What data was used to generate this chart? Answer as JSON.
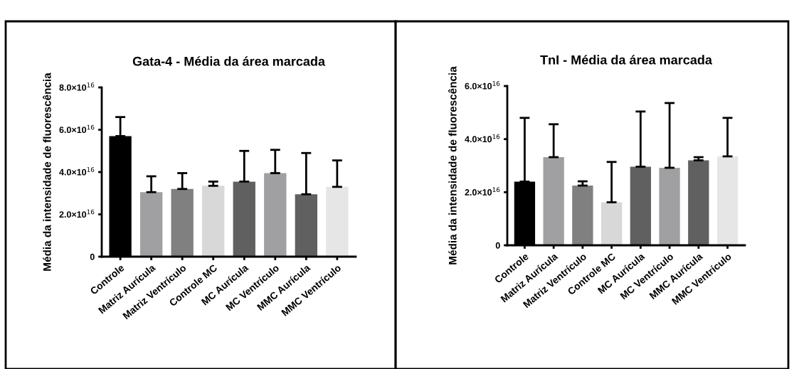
{
  "chart_data": [
    {
      "type": "bar",
      "title": "Gata-4 - Média da área marcada",
      "ylabel": "Média da intensidade de fluorescência",
      "categories": [
        "Controle",
        "Matriz Aurícula",
        "Matriz Ventrículo",
        "Controle MC",
        "MC Aurícula",
        "MC Ventrículo",
        "MMC Aurícula",
        "MMC Ventrículo"
      ],
      "values": [
        5.7e+16,
        3.05e+16,
        3.2e+16,
        3.35e+16,
        3.55e+16,
        3.95e+16,
        2.95e+16,
        3.3e+16
      ],
      "errors": [
        [
          5.7e+16,
          6.6e+16
        ],
        [
          3.05e+16,
          3.8e+16
        ],
        [
          3.2e+16,
          3.95e+16
        ],
        [
          3.35e+16,
          3.55e+16
        ],
        [
          3.55e+16,
          5e+16
        ],
        [
          3.95e+16,
          5.05e+16
        ],
        [
          2.95e+16,
          4.9e+16
        ],
        [
          3.3e+16,
          4.55e+16
        ]
      ],
      "colors": [
        "#000000",
        "#a0a0a3",
        "#808080",
        "#d8d8d8",
        "#606060",
        "#a0a0a3",
        "#606060",
        "#e6e6e6"
      ],
      "ylim": [
        0,
        8e+16
      ],
      "yticks": [
        0,
        {
          "value": 2e+16,
          "label": "2.0×10$^{16}$"
        },
        {
          "value": 4e+16,
          "label": "4.0×10$^{16}$"
        },
        {
          "value": 6e+16,
          "label": "6.0×10$^{16}$"
        },
        {
          "value": 8e+16,
          "label": "8.0×10$^{16}$"
        }
      ]
    },
    {
      "type": "bar",
      "title": "TnI - Média da área marcada",
      "ylabel": "Média da intensidade de fluorescência",
      "categories": [
        "Controle",
        "Matriz Aurícula",
        "Matriz Ventrículo",
        "Controle MC",
        "MC Aurícula",
        "MC Ventrículo",
        "MMC Aurícula",
        "MMC Ventrículo"
      ],
      "values": [
        2.4e+16,
        3.32e+16,
        2.25e+16,
        1.62e+16,
        2.96e+16,
        2.92e+16,
        3.2e+16,
        3.35e+16
      ],
      "errors": [
        [
          2.4e+16,
          4.8e+16
        ],
        [
          3.32e+16,
          4.56e+16
        ],
        [
          2.25e+16,
          2.41e+16
        ],
        [
          1.62e+16,
          3.14e+16
        ],
        [
          2.96e+16,
          5.04e+16
        ],
        [
          2.92e+16,
          5.36e+16
        ],
        [
          3.2e+16,
          3.32e+16
        ],
        [
          3.35e+16,
          4.8e+16
        ]
      ],
      "colors": [
        "#000000",
        "#a0a0a3",
        "#808080",
        "#d8d8d8",
        "#606060",
        "#a0a0a3",
        "#606060",
        "#e6e6e6"
      ],
      "ylim": [
        0,
        6e+16
      ],
      "yticks": [
        0,
        {
          "value": 2e+16,
          "label": "2.0×10$^{16}$"
        },
        {
          "value": 4e+16,
          "label": "4.0×10$^{16}$"
        },
        {
          "value": 6e+16,
          "label": "6.0×10$^{16}$"
        }
      ]
    }
  ]
}
